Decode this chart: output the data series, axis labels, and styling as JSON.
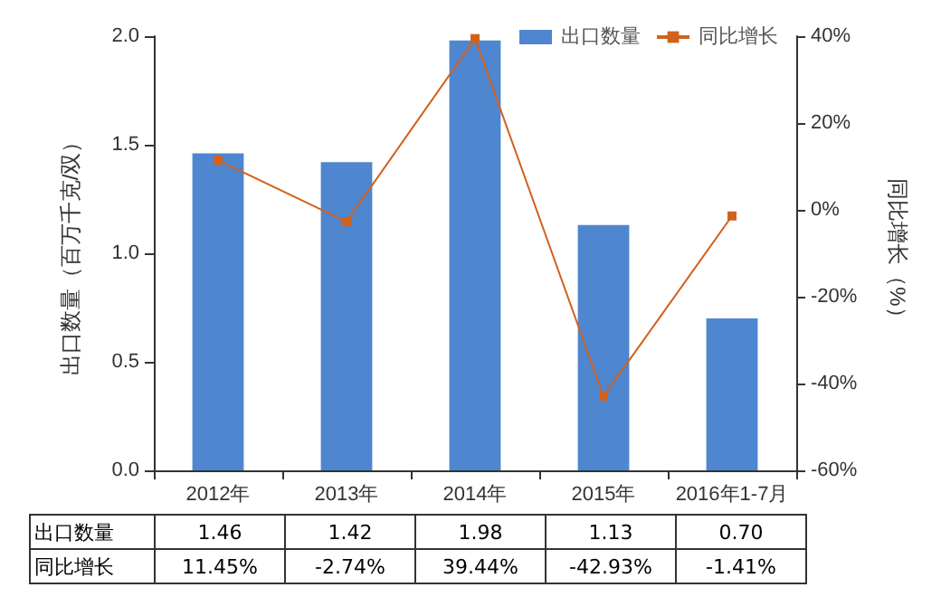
{
  "chart_data": {
    "type": "bar",
    "categories": [
      "2012年",
      "2013年",
      "2014年",
      "2015年",
      "2016年1-7月"
    ],
    "series": [
      {
        "name": "出口数量",
        "color": "#4f86d0",
        "values": [
          1.46,
          1.42,
          1.98,
          1.13,
          0.7
        ],
        "value_labels": [
          "1.46",
          "1.42",
          "1.98",
          "1.13",
          "0.70"
        ]
      },
      {
        "name": "同比增长",
        "type": "line",
        "axis": "y2",
        "color": "#d0621e",
        "values": [
          11.45,
          -2.74,
          39.44,
          -42.93,
          -1.41
        ],
        "value_labels": [
          "11.45%",
          "-2.74%",
          "39.44%",
          "-42.93%",
          "-1.41%"
        ]
      }
    ],
    "ylabel": "出口数量（百万千克/双）",
    "y2label": "同比增长（%）",
    "ylim": [
      0,
      2
    ],
    "yticks": [
      {
        "value": 0,
        "label": "0.0"
      },
      {
        "value": 0.5,
        "label": "0.5"
      },
      {
        "value": 1,
        "label": "1.0"
      },
      {
        "value": 1.5,
        "label": "1.5"
      },
      {
        "value": 2,
        "label": "2.0"
      }
    ],
    "y2lim": [
      -60,
      40
    ],
    "y2ticks": [
      {
        "value": -60,
        "label": "-60%"
      },
      {
        "value": -40,
        "label": "-40%"
      },
      {
        "value": -20,
        "label": "-20%"
      },
      {
        "value": 0,
        "label": "0%"
      },
      {
        "value": 20,
        "label": "20%"
      },
      {
        "value": 40,
        "label": "40%"
      }
    ],
    "legend": "top right",
    "grid": false,
    "marker": "square",
    "line_style": "solid"
  }
}
